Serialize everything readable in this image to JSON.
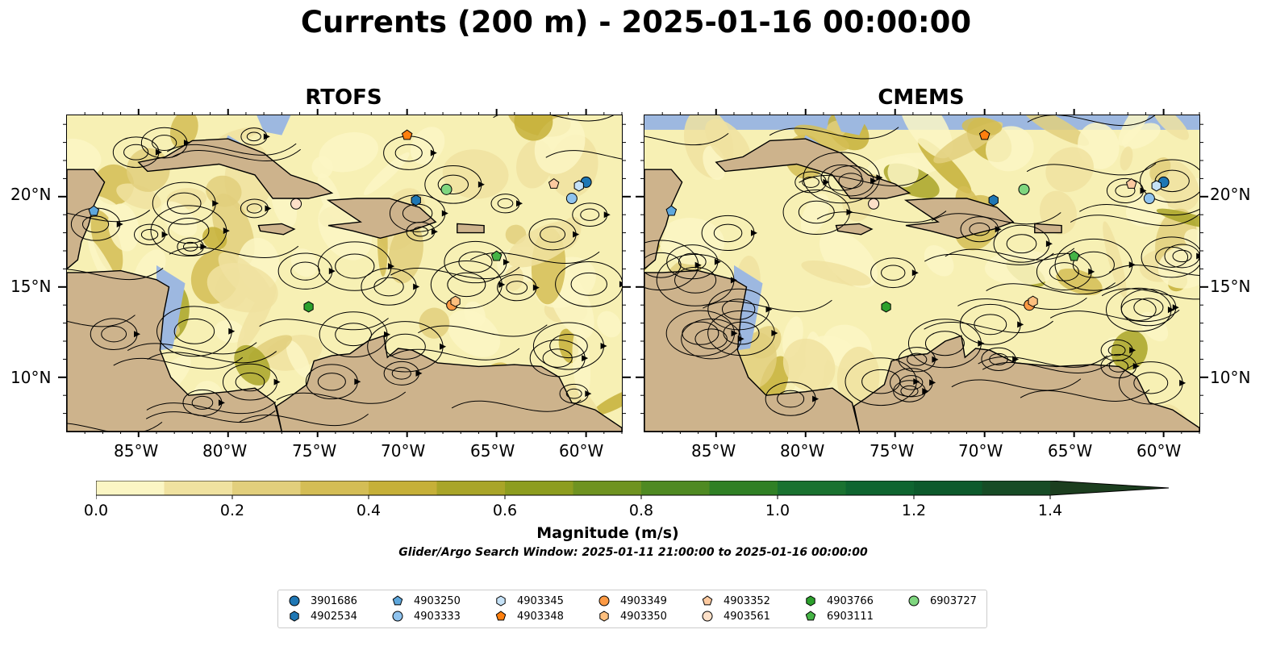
{
  "title": "Currents (200 m) - 2025-01-16 00:00:00",
  "panels": [
    {
      "title": "RTOFS"
    },
    {
      "title": "CMEMS"
    }
  ],
  "axes": {
    "lon_ticks": [
      "85°W",
      "80°W",
      "75°W",
      "70°W",
      "65°W",
      "60°W"
    ],
    "lat_ticks": [
      "20°N",
      "15°N",
      "10°N"
    ],
    "lon_range": [
      -89,
      -58
    ],
    "lat_range": [
      7,
      24.5
    ]
  },
  "colors": {
    "land": "#cdb38c",
    "water_low": "#f7f0b4",
    "shallow_water": "#9db8e0",
    "streamline": "#000000"
  },
  "colorbar": {
    "title": "Magnitude (m/s)",
    "tick_labels": [
      "0.0",
      "0.2",
      "0.4",
      "0.6",
      "0.8",
      "1.0",
      "1.2",
      "1.4"
    ],
    "range": [
      0,
      1.5
    ],
    "step": 0.1,
    "extend": "max",
    "colors": [
      "#fbf6c4",
      "#f0e2a0",
      "#e2cf7c",
      "#d4bd55",
      "#c6b038",
      "#a9a528",
      "#8d9d1f",
      "#6f9320",
      "#4f8a22",
      "#308025",
      "#1a7230",
      "#0f6530",
      "#0d5a2c",
      "#174c26",
      "#1c3e1f"
    ]
  },
  "search_window": "Glider/Argo Search Window: 2025-01-11 21:00:00 to 2025-01-16 00:00:00",
  "legend": [
    {
      "id": "3901686",
      "shape": "circle",
      "color": "#1f77b4"
    },
    {
      "id": "4902534",
      "shape": "hexagon",
      "color": "#1f77b4"
    },
    {
      "id": "4903250",
      "shape": "pentagon",
      "color": "#5ea7dc"
    },
    {
      "id": "4903333",
      "shape": "circle",
      "color": "#8fc3ee"
    },
    {
      "id": "4903345",
      "shape": "hexagon",
      "color": "#c6e2f7"
    },
    {
      "id": "4903348",
      "shape": "pentagon",
      "color": "#ff7f0e"
    },
    {
      "id": "4903349",
      "shape": "circle",
      "color": "#fd9a44"
    },
    {
      "id": "4903350",
      "shape": "hexagon",
      "color": "#fdbf7e"
    },
    {
      "id": "4903352",
      "shape": "pentagon",
      "color": "#fdcaa0"
    },
    {
      "id": "4903561",
      "shape": "circle",
      "color": "#fde0c8"
    },
    {
      "id": "4903766",
      "shape": "hexagon",
      "color": "#2ca02c"
    },
    {
      "id": "6903111",
      "shape": "pentagon",
      "color": "#46b446"
    },
    {
      "id": "6903727",
      "shape": "circle",
      "color": "#7fd67f"
    }
  ],
  "floats": [
    {
      "id": "3901686",
      "lon": -60.0,
      "lat": 20.8
    },
    {
      "id": "4902534",
      "lon": -69.5,
      "lat": 19.8
    },
    {
      "id": "4903250",
      "lon": -87.5,
      "lat": 19.2
    },
    {
      "id": "4903333",
      "lon": -60.8,
      "lat": 19.9
    },
    {
      "id": "4903345",
      "lon": -60.4,
      "lat": 20.6
    },
    {
      "id": "4903348",
      "lon": -70.0,
      "lat": 23.4
    },
    {
      "id": "4903349",
      "lon": -67.5,
      "lat": 14.0
    },
    {
      "id": "4903350",
      "lon": -67.3,
      "lat": 14.2
    },
    {
      "id": "4903352",
      "lon": -61.8,
      "lat": 20.7
    },
    {
      "id": "4903561",
      "lon": -76.2,
      "lat": 19.6
    },
    {
      "id": "4903766",
      "lon": -75.5,
      "lat": 13.9
    },
    {
      "id": "6903111",
      "lon": -65.0,
      "lat": 16.7
    },
    {
      "id": "6903727",
      "lon": -67.8,
      "lat": 20.4
    }
  ]
}
